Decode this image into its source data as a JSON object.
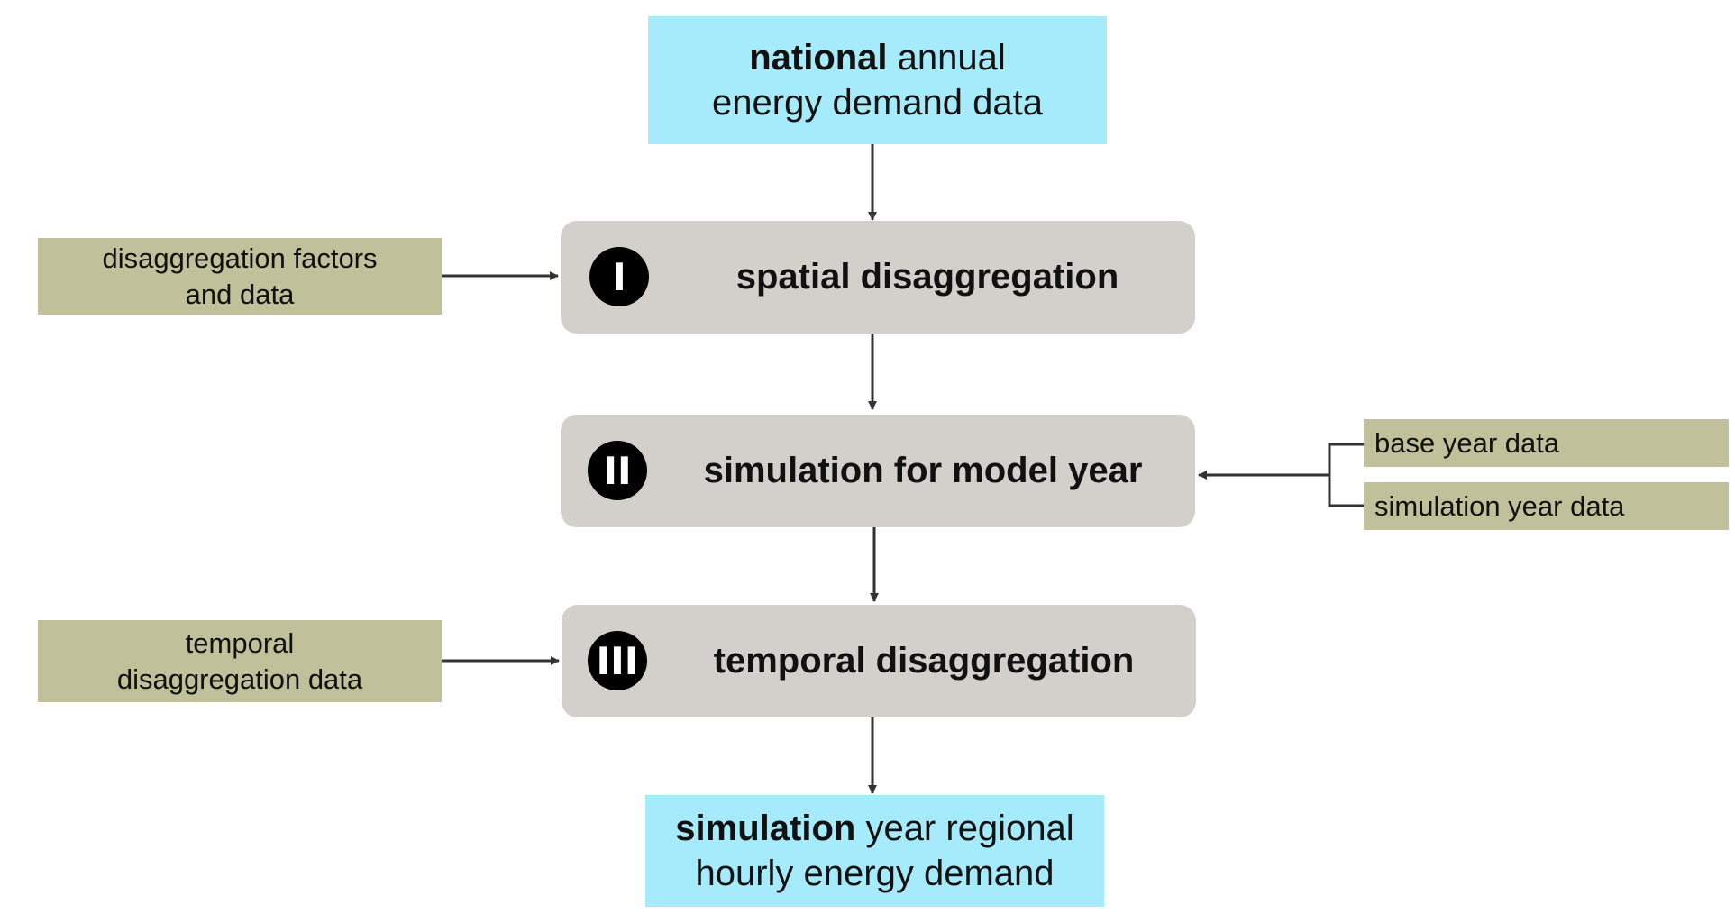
{
  "colors": {
    "io_fill": "#a6ebfb",
    "step_fill": "#d3cfcb",
    "input_fill": "#c0c09a",
    "badge_fill": "#000000",
    "line": "#333333"
  },
  "top_box": {
    "bold": "national",
    "rest": " annual",
    "line2": "energy demand data"
  },
  "steps": [
    {
      "badge": "I",
      "label": "spatial disaggregation"
    },
    {
      "badge": "II",
      "label": "simulation for model year"
    },
    {
      "badge": "III",
      "label": "temporal disaggregation"
    }
  ],
  "inputs": {
    "disaggregation": {
      "line1": "disaggregation factors",
      "line2": "and data"
    },
    "temporal": {
      "line1": "temporal",
      "line2": "disaggregation data"
    },
    "base_year": {
      "label": "base year data"
    },
    "simulation_year": {
      "label": "simulation year data"
    }
  },
  "bottom_box": {
    "bold": "simulation",
    "rest": " year regional",
    "line2": "hourly energy demand"
  }
}
